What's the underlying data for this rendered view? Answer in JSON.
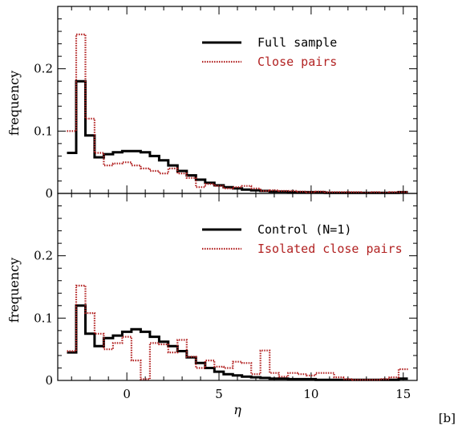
{
  "chart_data": [
    {
      "type": "line",
      "panel": "top",
      "xlabel": "",
      "ylabel": "frequency",
      "xlim": [
        -3.75,
        15.75
      ],
      "ylim": [
        0,
        0.3
      ],
      "xticks": [
        "0",
        "5",
        "10",
        "15"
      ],
      "yticks": [
        "0",
        "0.1",
        "0.2"
      ],
      "bin_edges": [
        -3.25,
        -2.75,
        -2.25,
        -1.75,
        -1.25,
        -0.75,
        -0.25,
        0.25,
        0.75,
        1.25,
        1.75,
        2.25,
        2.75,
        3.25,
        3.75,
        4.25,
        4.75,
        5.25,
        5.75,
        6.25,
        6.75,
        7.25,
        7.75,
        8.25,
        8.75,
        9.25,
        9.75,
        10.25,
        10.75,
        11.25,
        11.75,
        12.25,
        12.75,
        13.25,
        13.75,
        14.25,
        14.75,
        15.25
      ],
      "legend_position": "top-right",
      "series": [
        {
          "name": "Full sample",
          "color": "#000000",
          "style": "solid",
          "values": [
            0.065,
            0.18,
            0.093,
            0.058,
            0.063,
            0.066,
            0.068,
            0.068,
            0.066,
            0.06,
            0.053,
            0.045,
            0.036,
            0.029,
            0.022,
            0.017,
            0.013,
            0.01,
            0.008,
            0.006,
            0.005,
            0.004,
            0.003,
            0.003,
            0.002,
            0.002,
            0.002,
            0.002,
            0.001,
            0.001,
            0.001,
            0.001,
            0.001,
            0.001,
            0.001,
            0.001,
            0.002
          ]
        },
        {
          "name": "Close pairs",
          "color": "#b22222",
          "style": "dotted",
          "values": [
            0.1,
            0.255,
            0.12,
            0.065,
            0.045,
            0.048,
            0.05,
            0.045,
            0.04,
            0.036,
            0.032,
            0.04,
            0.032,
            0.025,
            0.01,
            0.015,
            0.012,
            0.008,
            0.01,
            0.012,
            0.008,
            0.004,
            0.005,
            0.004,
            0.004,
            0.003,
            0.002,
            0.003,
            0.002,
            0.002,
            0.002,
            0.002,
            0.001,
            0.002,
            0.001,
            0.002,
            0.002
          ]
        }
      ]
    },
    {
      "type": "line",
      "panel": "bottom",
      "xlabel": "η",
      "ylabel": "frequency",
      "xlim": [
        -3.75,
        15.75
      ],
      "ylim": [
        0,
        0.3
      ],
      "xticks": [
        "0",
        "5",
        "10",
        "15"
      ],
      "yticks": [
        "0",
        "0.1",
        "0.2"
      ],
      "bin_edges": [
        -3.25,
        -2.75,
        -2.25,
        -1.75,
        -1.25,
        -0.75,
        -0.25,
        0.25,
        0.75,
        1.25,
        1.75,
        2.25,
        2.75,
        3.25,
        3.75,
        4.25,
        4.75,
        5.25,
        5.75,
        6.25,
        6.75,
        7.25,
        7.75,
        8.25,
        8.75,
        9.25,
        9.75,
        10.25,
        10.75,
        11.25,
        11.75,
        12.25,
        12.75,
        13.25,
        13.75,
        14.25,
        14.75,
        15.25
      ],
      "legend_position": "top-right",
      "series": [
        {
          "name": "Control (N=1)",
          "color": "#000000",
          "style": "solid",
          "values": [
            0.045,
            0.12,
            0.075,
            0.055,
            0.068,
            0.072,
            0.078,
            0.082,
            0.078,
            0.07,
            0.062,
            0.055,
            0.047,
            0.037,
            0.028,
            0.02,
            0.014,
            0.01,
            0.008,
            0.006,
            0.005,
            0.004,
            0.003,
            0.003,
            0.002,
            0.002,
            0.002,
            0.001,
            0.001,
            0.001,
            0.001,
            0.001,
            0.001,
            0.001,
            0.001,
            0.001,
            0.003
          ]
        },
        {
          "name": "Isolated close pairs",
          "color": "#b22222",
          "style": "dotted",
          "values": [
            0.047,
            0.152,
            0.108,
            0.075,
            0.05,
            0.06,
            0.07,
            0.032,
            0.002,
            0.06,
            0.058,
            0.045,
            0.065,
            0.038,
            0.02,
            0.032,
            0.022,
            0.02,
            0.03,
            0.028,
            0.01,
            0.048,
            0.012,
            0.006,
            0.012,
            0.01,
            0.008,
            0.012,
            0.012,
            0.005,
            0.002,
            0.001,
            0.001,
            0.001,
            0.002,
            0.005,
            0.018
          ]
        }
      ]
    }
  ],
  "figure_tag": "[b]"
}
